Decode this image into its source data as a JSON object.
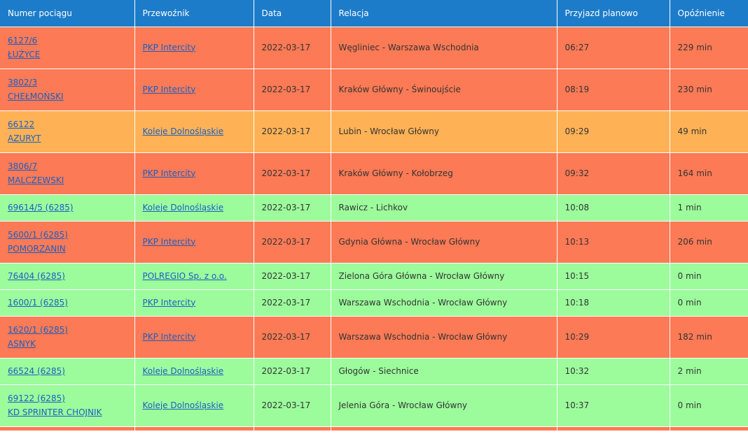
{
  "colors": {
    "header": "#1c7cc9",
    "late_severe": "#fc7a55",
    "late_moderate": "#ffb255",
    "on_time": "#9cfc9c",
    "link": "#1a5fc4"
  },
  "table": {
    "headers": [
      "Numer pociągu",
      "Przewoźnik",
      "Data",
      "Relacja",
      "Przyjazd planowo",
      "Opóźnienie"
    ],
    "rows": [
      {
        "number": "6127/6",
        "name": "ŁUŻYCE",
        "carrier": "PKP Intercity",
        "date": "2022-03-17",
        "route": "Węgliniec - Warszawa Wschodnia",
        "planned": "06:27",
        "delay": "229 min",
        "status": "red"
      },
      {
        "number": "3802/3",
        "name": "CHEŁMOŃSKI",
        "carrier": "PKP Intercity",
        "date": "2022-03-17",
        "route": "Kraków Główny - Świnoujście",
        "planned": "08:19",
        "delay": "230 min",
        "status": "red"
      },
      {
        "number": "66122",
        "name": "AZURYT",
        "carrier": "Koleje Dolnośląskie",
        "date": "2022-03-17",
        "route": "Lubin - Wrocław Główny",
        "planned": "09:29",
        "delay": "49 min",
        "status": "orange"
      },
      {
        "number": "3806/7",
        "name": "MALCZEWSKI",
        "carrier": "PKP Intercity",
        "date": "2022-03-17",
        "route": "Kraków Główny - Kołobrzeg",
        "planned": "09:32",
        "delay": "164 min",
        "status": "red"
      },
      {
        "number": "69614/5 (6285)",
        "name": "",
        "carrier": "Koleje Dolnośląskie",
        "date": "2022-03-17",
        "route": "Rawicz - Lichkov",
        "planned": "10:08",
        "delay": "1 min",
        "status": "green"
      },
      {
        "number": "5600/1 (6285)",
        "name": "POMORZANIN",
        "carrier": "PKP Intercity",
        "date": "2022-03-17",
        "route": "Gdynia Główna - Wrocław Główny",
        "planned": "10:13",
        "delay": "206 min",
        "status": "red"
      },
      {
        "number": "76404 (6285)",
        "name": "",
        "carrier": "POLREGIO Sp. z o.o.",
        "date": "2022-03-17",
        "route": "Zielona Góra Główna - Wrocław Główny",
        "planned": "10:15",
        "delay": "0 min",
        "status": "green"
      },
      {
        "number": "1600/1 (6285)",
        "name": "",
        "carrier": "PKP Intercity",
        "date": "2022-03-17",
        "route": "Warszawa Wschodnia - Wrocław Główny",
        "planned": "10:18",
        "delay": "0 min",
        "status": "green"
      },
      {
        "number": "1620/1 (6285)",
        "name": "ASNYK",
        "carrier": "PKP Intercity",
        "date": "2022-03-17",
        "route": "Warszawa Wschodnia - Wrocław Główny",
        "planned": "10:29",
        "delay": "182 min",
        "status": "red"
      },
      {
        "number": "66524 (6285)",
        "name": "",
        "carrier": "Koleje Dolnośląskie",
        "date": "2022-03-17",
        "route": "Głogów - Siechnice",
        "planned": "10:32",
        "delay": "2 min",
        "status": "green"
      },
      {
        "number": "69122 (6285)",
        "name": "KD SPRINTER CHOJNIK",
        "carrier": "Koleje Dolnośląskie",
        "date": "2022-03-17",
        "route": "Jelenia Góra - Wrocław Główny",
        "planned": "10:37",
        "delay": "0 min",
        "status": "green"
      }
    ]
  }
}
